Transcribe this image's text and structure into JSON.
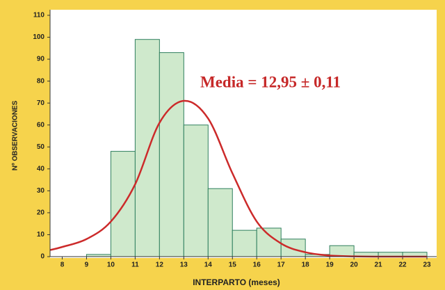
{
  "chart_data": {
    "type": "histogram",
    "ylabel": "Nº OBSERVACIONES",
    "xlabel": "INTERPARTO (meses)",
    "annotation": "Media = 12,95 ± 0,11",
    "bins": [
      8,
      9,
      10,
      11,
      12,
      13,
      14,
      15,
      16,
      17,
      18,
      19,
      20,
      21,
      22,
      23
    ],
    "values": [
      0,
      1,
      48,
      99,
      93,
      60,
      31,
      12,
      13,
      8,
      1,
      5,
      2,
      2,
      2
    ],
    "color": "#cfe9cc",
    "edge_color": "#2f7f5e",
    "curve": {
      "color": "#cc2a2a",
      "x": [
        7.5,
        8,
        9,
        10,
        11,
        12,
        13,
        14,
        15,
        16,
        17,
        18,
        19,
        20,
        21,
        22,
        23
      ],
      "values": [
        3,
        4.4,
        8,
        16,
        33,
        61,
        71,
        63,
        38,
        16,
        6,
        2,
        0.5,
        0.1,
        0,
        0,
        0
      ]
    },
    "xlim": [
      7.5,
      23.4
    ],
    "ylim": [
      0,
      110
    ],
    "xticks": [
      8,
      9,
      10,
      11,
      12,
      13,
      14,
      15,
      16,
      17,
      18,
      19,
      20,
      21,
      22,
      23
    ],
    "yticks": [
      0,
      10,
      20,
      30,
      40,
      50,
      60,
      70,
      80,
      90,
      100,
      110
    ]
  }
}
